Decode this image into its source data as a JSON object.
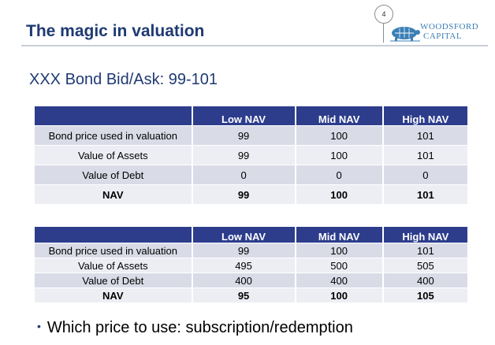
{
  "slide": {
    "title": "The magic in valuation",
    "page_number": "4",
    "subtitle": "XXX Bond Bid/Ask: 99-101",
    "bullet": "Which price to use: subscription/redemption"
  },
  "logo": {
    "line1": "WOODSFORD",
    "line2": "CAPITAL",
    "icon": "tortoise-logo-icon"
  },
  "table1": {
    "headers": [
      "",
      "Low NAV",
      "Mid NAV",
      "High NAV"
    ],
    "rows": [
      [
        "Bond price used in valuation",
        "99",
        "100",
        "101"
      ],
      [
        "Value of Assets",
        "99",
        "100",
        "101"
      ],
      [
        "Value of Debt",
        "0",
        "0",
        "0"
      ],
      [
        "NAV",
        "99",
        "100",
        "101"
      ]
    ]
  },
  "table2": {
    "headers": [
      "",
      "Low NAV",
      "Mid NAV",
      "High NAV"
    ],
    "rows": [
      [
        "Bond price used in valuation",
        "99",
        "100",
        "101"
      ],
      [
        "Value of Assets",
        "495",
        "500",
        "505"
      ],
      [
        "Value of Debt",
        "400",
        "400",
        "400"
      ],
      [
        "NAV",
        "95",
        "100",
        "105"
      ]
    ]
  },
  "colors": {
    "title": "#1f3a73",
    "table_header": "#2d3d8c",
    "row_shade": "#d9dbe7",
    "row_light": "#edeef4",
    "logo": "#3b7fb6"
  }
}
